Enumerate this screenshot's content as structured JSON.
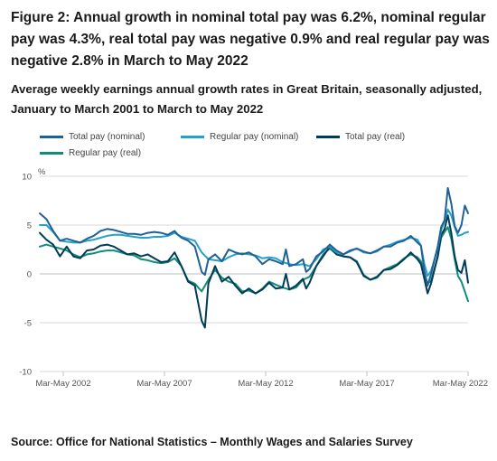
{
  "title": "Figure 2: Annual growth in nominal total pay was 6.2%, nominal regular pay was 4.3%, real total pay was negative 0.9% and real regular pay was negative 2.8% in March to May 2022",
  "subtitle": "Average weekly earnings annual growth rates in Great Britain, seasonally adjusted, January to March 2001 to March to May 2022",
  "source": "Source: Office for National Statistics – Monthly Wages and Salaries Survey",
  "colors": {
    "total_nominal": "#206095",
    "regular_nominal": "#27a0cc",
    "total_real": "#003c57",
    "regular_real": "#118c7b",
    "gridline": "#d9d9d9",
    "zero_line": "#bebebe"
  },
  "chart_data": {
    "type": "line",
    "title": "Average weekly earnings annual growth rates in Great Britain, seasonally adjusted, January to March 2001 to March to May 2022",
    "ylabel": "%",
    "xlabel": "",
    "ylim": [
      -10,
      10
    ],
    "yticks": [
      10,
      5,
      0,
      -5,
      -10
    ],
    "xlim": [
      2001.17,
      2022.33
    ],
    "x_ticks": [
      {
        "label": "Mar-May 2002",
        "x": 2002.33
      },
      {
        "label": "Mar-May 2007",
        "x": 2007.33
      },
      {
        "label": "Mar-May 2012",
        "x": 2012.33
      },
      {
        "label": "Mar-May 2017",
        "x": 2017.33
      },
      {
        "label": "Mar-May 2022",
        "x": 2022.33
      }
    ],
    "grid": true,
    "legend_position": "top",
    "series": [
      {
        "name": "Total pay (nominal)",
        "color_key": "total_nominal",
        "points": [
          [
            2001.17,
            6.2
          ],
          [
            2001.5,
            5.6
          ],
          [
            2001.83,
            4.4
          ],
          [
            2002.17,
            3.4
          ],
          [
            2002.5,
            3.6
          ],
          [
            2002.83,
            3.4
          ],
          [
            2003.17,
            3.2
          ],
          [
            2003.5,
            3.6
          ],
          [
            2003.83,
            3.9
          ],
          [
            2004.17,
            4.4
          ],
          [
            2004.5,
            4.6
          ],
          [
            2004.83,
            4.5
          ],
          [
            2005.17,
            4.3
          ],
          [
            2005.5,
            4.1
          ],
          [
            2005.83,
            4.1
          ],
          [
            2006.17,
            4.0
          ],
          [
            2006.5,
            4.2
          ],
          [
            2006.83,
            4.3
          ],
          [
            2007.17,
            4.2
          ],
          [
            2007.5,
            4.0
          ],
          [
            2007.83,
            4.4
          ],
          [
            2008.0,
            4.0
          ],
          [
            2008.17,
            3.7
          ],
          [
            2008.5,
            3.4
          ],
          [
            2008.83,
            2.8
          ],
          [
            2009.17,
            0.2
          ],
          [
            2009.33,
            -0.1
          ],
          [
            2009.5,
            1.5
          ],
          [
            2009.83,
            2.0
          ],
          [
            2010.17,
            1.3
          ],
          [
            2010.5,
            2.5
          ],
          [
            2010.83,
            2.2
          ],
          [
            2011.17,
            2.0
          ],
          [
            2011.5,
            2.2
          ],
          [
            2011.83,
            1.8
          ],
          [
            2012.17,
            1.0
          ],
          [
            2012.5,
            1.5
          ],
          [
            2012.83,
            1.3
          ],
          [
            2013.17,
            1.0
          ],
          [
            2013.33,
            2.5
          ],
          [
            2013.5,
            0.8
          ],
          [
            2013.83,
            1.0
          ],
          [
            2014.17,
            1.5
          ],
          [
            2014.33,
            0.2
          ],
          [
            2014.5,
            0.5
          ],
          [
            2014.83,
            1.8
          ],
          [
            2015.17,
            2.3
          ],
          [
            2015.5,
            3.0
          ],
          [
            2015.83,
            2.4
          ],
          [
            2016.17,
            2.0
          ],
          [
            2016.5,
            2.4
          ],
          [
            2016.83,
            2.6
          ],
          [
            2017.17,
            2.3
          ],
          [
            2017.5,
            2.1
          ],
          [
            2017.83,
            2.4
          ],
          [
            2018.17,
            2.8
          ],
          [
            2018.5,
            2.8
          ],
          [
            2018.83,
            3.2
          ],
          [
            2019.17,
            3.4
          ],
          [
            2019.5,
            3.9
          ],
          [
            2019.83,
            3.2
          ],
          [
            2020.0,
            2.9
          ],
          [
            2020.17,
            0.3
          ],
          [
            2020.33,
            -1.2
          ],
          [
            2020.5,
            0.0
          ],
          [
            2020.83,
            2.8
          ],
          [
            2021.0,
            4.8
          ],
          [
            2021.17,
            5.5
          ],
          [
            2021.33,
            8.8
          ],
          [
            2021.5,
            7.2
          ],
          [
            2021.67,
            4.9
          ],
          [
            2021.83,
            4.2
          ],
          [
            2022.0,
            5.0
          ],
          [
            2022.17,
            7.0
          ],
          [
            2022.33,
            6.2
          ]
        ]
      },
      {
        "name": "Regular pay (nominal)",
        "color_key": "regular_nominal",
        "points": [
          [
            2001.17,
            5.0
          ],
          [
            2001.5,
            5.0
          ],
          [
            2001.83,
            4.3
          ],
          [
            2002.17,
            3.4
          ],
          [
            2002.5,
            3.3
          ],
          [
            2002.83,
            3.2
          ],
          [
            2003.17,
            3.2
          ],
          [
            2003.5,
            3.4
          ],
          [
            2003.83,
            3.5
          ],
          [
            2004.17,
            3.7
          ],
          [
            2004.5,
            3.9
          ],
          [
            2004.83,
            4.0
          ],
          [
            2005.17,
            4.0
          ],
          [
            2005.5,
            3.9
          ],
          [
            2005.83,
            3.8
          ],
          [
            2006.17,
            3.7
          ],
          [
            2006.5,
            3.7
          ],
          [
            2006.83,
            3.8
          ],
          [
            2007.17,
            3.8
          ],
          [
            2007.5,
            3.9
          ],
          [
            2007.83,
            4.2
          ],
          [
            2008.17,
            3.8
          ],
          [
            2008.5,
            3.6
          ],
          [
            2008.83,
            3.4
          ],
          [
            2009.17,
            2.2
          ],
          [
            2009.5,
            1.5
          ],
          [
            2009.83,
            1.4
          ],
          [
            2010.17,
            1.3
          ],
          [
            2010.5,
            1.7
          ],
          [
            2010.83,
            2.0
          ],
          [
            2011.17,
            2.1
          ],
          [
            2011.5,
            2.0
          ],
          [
            2011.83,
            1.9
          ],
          [
            2012.17,
            1.6
          ],
          [
            2012.5,
            1.7
          ],
          [
            2012.83,
            1.6
          ],
          [
            2013.17,
            1.2
          ],
          [
            2013.5,
            1.0
          ],
          [
            2013.83,
            0.9
          ],
          [
            2014.17,
            1.0
          ],
          [
            2014.5,
            0.8
          ],
          [
            2014.83,
            1.5
          ],
          [
            2015.17,
            2.5
          ],
          [
            2015.5,
            2.8
          ],
          [
            2015.83,
            2.2
          ],
          [
            2016.17,
            2.0
          ],
          [
            2016.5,
            2.3
          ],
          [
            2016.83,
            2.6
          ],
          [
            2017.17,
            2.2
          ],
          [
            2017.5,
            2.1
          ],
          [
            2017.83,
            2.3
          ],
          [
            2018.17,
            2.8
          ],
          [
            2018.5,
            3.0
          ],
          [
            2018.83,
            3.3
          ],
          [
            2019.17,
            3.5
          ],
          [
            2019.5,
            3.7
          ],
          [
            2019.83,
            3.5
          ],
          [
            2020.0,
            2.9
          ],
          [
            2020.17,
            1.0
          ],
          [
            2020.33,
            -0.2
          ],
          [
            2020.5,
            0.3
          ],
          [
            2020.83,
            2.6
          ],
          [
            2021.0,
            4.5
          ],
          [
            2021.17,
            5.4
          ],
          [
            2021.33,
            6.6
          ],
          [
            2021.5,
            6.0
          ],
          [
            2021.67,
            4.8
          ],
          [
            2021.83,
            3.9
          ],
          [
            2022.0,
            4.0
          ],
          [
            2022.17,
            4.2
          ],
          [
            2022.33,
            4.3
          ]
        ]
      },
      {
        "name": "Total pay (real)",
        "color_key": "total_real",
        "points": [
          [
            2001.17,
            4.2
          ],
          [
            2001.5,
            3.5
          ],
          [
            2001.83,
            3.0
          ],
          [
            2002.17,
            1.8
          ],
          [
            2002.5,
            2.8
          ],
          [
            2002.83,
            1.8
          ],
          [
            2003.17,
            1.6
          ],
          [
            2003.5,
            2.4
          ],
          [
            2003.83,
            2.5
          ],
          [
            2004.17,
            2.9
          ],
          [
            2004.5,
            3.0
          ],
          [
            2004.83,
            2.8
          ],
          [
            2005.17,
            2.4
          ],
          [
            2005.5,
            2.0
          ],
          [
            2005.83,
            2.1
          ],
          [
            2006.17,
            1.8
          ],
          [
            2006.5,
            2.0
          ],
          [
            2006.83,
            1.6
          ],
          [
            2007.17,
            1.2
          ],
          [
            2007.5,
            1.3
          ],
          [
            2007.83,
            2.2
          ],
          [
            2008.17,
            0.8
          ],
          [
            2008.5,
            -0.8
          ],
          [
            2008.83,
            -1.2
          ],
          [
            2009.17,
            -4.8
          ],
          [
            2009.33,
            -5.5
          ],
          [
            2009.5,
            -1.0
          ],
          [
            2009.83,
            0.8
          ],
          [
            2010.17,
            -0.8
          ],
          [
            2010.5,
            -0.3
          ],
          [
            2010.83,
            -1.2
          ],
          [
            2011.17,
            -2.0
          ],
          [
            2011.5,
            -1.5
          ],
          [
            2011.83,
            -2.0
          ],
          [
            2012.17,
            -1.6
          ],
          [
            2012.5,
            -0.9
          ],
          [
            2012.83,
            -1.5
          ],
          [
            2013.17,
            -1.4
          ],
          [
            2013.33,
            0.0
          ],
          [
            2013.5,
            -1.6
          ],
          [
            2013.83,
            -1.2
          ],
          [
            2014.17,
            -0.5
          ],
          [
            2014.33,
            -1.5
          ],
          [
            2014.5,
            -0.9
          ],
          [
            2014.83,
            0.8
          ],
          [
            2015.17,
            1.8
          ],
          [
            2015.5,
            2.8
          ],
          [
            2015.83,
            2.0
          ],
          [
            2016.17,
            1.8
          ],
          [
            2016.5,
            1.7
          ],
          [
            2016.83,
            1.2
          ],
          [
            2017.17,
            -0.2
          ],
          [
            2017.5,
            -0.6
          ],
          [
            2017.83,
            -0.3
          ],
          [
            2018.17,
            0.4
          ],
          [
            2018.5,
            0.5
          ],
          [
            2018.83,
            0.9
          ],
          [
            2019.17,
            1.5
          ],
          [
            2019.5,
            2.2
          ],
          [
            2019.83,
            1.5
          ],
          [
            2020.0,
            1.0
          ],
          [
            2020.17,
            -0.5
          ],
          [
            2020.33,
            -2.0
          ],
          [
            2020.5,
            -1.0
          ],
          [
            2020.83,
            1.8
          ],
          [
            2021.0,
            4.0
          ],
          [
            2021.17,
            4.6
          ],
          [
            2021.33,
            6.0
          ],
          [
            2021.5,
            4.2
          ],
          [
            2021.67,
            1.8
          ],
          [
            2021.83,
            0.4
          ],
          [
            2022.0,
            0.1
          ],
          [
            2022.17,
            1.4
          ],
          [
            2022.33,
            -0.9
          ]
        ]
      },
      {
        "name": "Regular pay (real)",
        "color_key": "regular_real",
        "points": [
          [
            2001.17,
            2.8
          ],
          [
            2001.5,
            3.0
          ],
          [
            2001.83,
            2.8
          ],
          [
            2002.17,
            2.6
          ],
          [
            2002.5,
            2.4
          ],
          [
            2002.83,
            2.0
          ],
          [
            2003.17,
            1.7
          ],
          [
            2003.5,
            2.0
          ],
          [
            2003.83,
            2.1
          ],
          [
            2004.17,
            2.3
          ],
          [
            2004.5,
            2.4
          ],
          [
            2004.83,
            2.4
          ],
          [
            2005.17,
            2.2
          ],
          [
            2005.5,
            2.0
          ],
          [
            2005.83,
            1.9
          ],
          [
            2006.17,
            1.5
          ],
          [
            2006.5,
            1.4
          ],
          [
            2006.83,
            1.2
          ],
          [
            2007.17,
            1.1
          ],
          [
            2007.5,
            1.2
          ],
          [
            2007.83,
            1.6
          ],
          [
            2008.17,
            0.8
          ],
          [
            2008.5,
            -0.7
          ],
          [
            2008.83,
            -1.0
          ],
          [
            2009.17,
            -1.8
          ],
          [
            2009.5,
            -0.6
          ],
          [
            2009.83,
            0.4
          ],
          [
            2010.17,
            -0.4
          ],
          [
            2010.5,
            -0.8
          ],
          [
            2010.83,
            -1.0
          ],
          [
            2011.17,
            -1.8
          ],
          [
            2011.5,
            -1.7
          ],
          [
            2011.83,
            -2.0
          ],
          [
            2012.17,
            -1.5
          ],
          [
            2012.5,
            -0.8
          ],
          [
            2012.83,
            -1.1
          ],
          [
            2013.17,
            -1.4
          ],
          [
            2013.5,
            -1.6
          ],
          [
            2013.83,
            -1.4
          ],
          [
            2014.17,
            -0.6
          ],
          [
            2014.5,
            -0.3
          ],
          [
            2014.83,
            0.8
          ],
          [
            2015.17,
            2.0
          ],
          [
            2015.5,
            2.6
          ],
          [
            2015.83,
            2.0
          ],
          [
            2016.17,
            1.8
          ],
          [
            2016.5,
            1.7
          ],
          [
            2016.83,
            1.3
          ],
          [
            2017.17,
            -0.1
          ],
          [
            2017.5,
            -0.6
          ],
          [
            2017.83,
            -0.4
          ],
          [
            2018.17,
            0.4
          ],
          [
            2018.5,
            0.7
          ],
          [
            2018.83,
            1.0
          ],
          [
            2019.17,
            1.6
          ],
          [
            2019.5,
            2.0
          ],
          [
            2019.83,
            1.7
          ],
          [
            2020.0,
            1.3
          ],
          [
            2020.17,
            0.0
          ],
          [
            2020.33,
            -1.0
          ],
          [
            2020.5,
            -0.7
          ],
          [
            2020.83,
            1.7
          ],
          [
            2021.0,
            3.7
          ],
          [
            2021.17,
            4.3
          ],
          [
            2021.33,
            4.8
          ],
          [
            2021.5,
            3.6
          ],
          [
            2021.67,
            1.5
          ],
          [
            2021.83,
            -0.2
          ],
          [
            2022.0,
            -0.8
          ],
          [
            2022.17,
            -1.8
          ],
          [
            2022.33,
            -2.8
          ]
        ]
      }
    ]
  }
}
